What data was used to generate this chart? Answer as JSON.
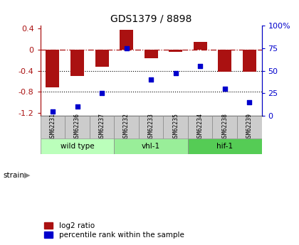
{
  "title": "GDS1379 / 8898",
  "categories": [
    "GSM62231",
    "GSM62236",
    "GSM62237",
    "GSM62232",
    "GSM62233",
    "GSM62235",
    "GSM62234",
    "GSM62238",
    "GSM62239"
  ],
  "log2_ratio": [
    -0.72,
    -0.5,
    -0.32,
    0.37,
    -0.17,
    -0.05,
    0.14,
    -0.42,
    -0.42
  ],
  "percentile_rank": [
    5,
    10,
    25,
    75,
    40,
    47,
    55,
    30,
    15
  ],
  "groups": [
    {
      "label": "wild type",
      "start": 0,
      "end": 3,
      "color": "#bbffbb"
    },
    {
      "label": "vhl-1",
      "start": 3,
      "end": 6,
      "color": "#99ee99"
    },
    {
      "label": "hif-1",
      "start": 6,
      "end": 9,
      "color": "#55cc55"
    }
  ],
  "bar_color": "#aa1111",
  "dot_color": "#0000cc",
  "ylim_left": [
    -1.25,
    0.45
  ],
  "ylim_right": [
    0,
    100
  ],
  "yticks_left": [
    -1.2,
    -0.8,
    -0.4,
    0.0,
    0.4
  ],
  "yticks_right": [
    0,
    25,
    50,
    75,
    100
  ],
  "yticklabels_right": [
    "0",
    "25",
    "50",
    "75",
    "100%"
  ],
  "hline_y": 0.0,
  "dotted_lines": [
    -0.4,
    -0.8
  ],
  "background_color": "#ffffff",
  "strain_label": "strain",
  "legend_entries": [
    "log2 ratio",
    "percentile rank within the sample"
  ],
  "label_box_color": "#cccccc",
  "bar_width": 0.55
}
